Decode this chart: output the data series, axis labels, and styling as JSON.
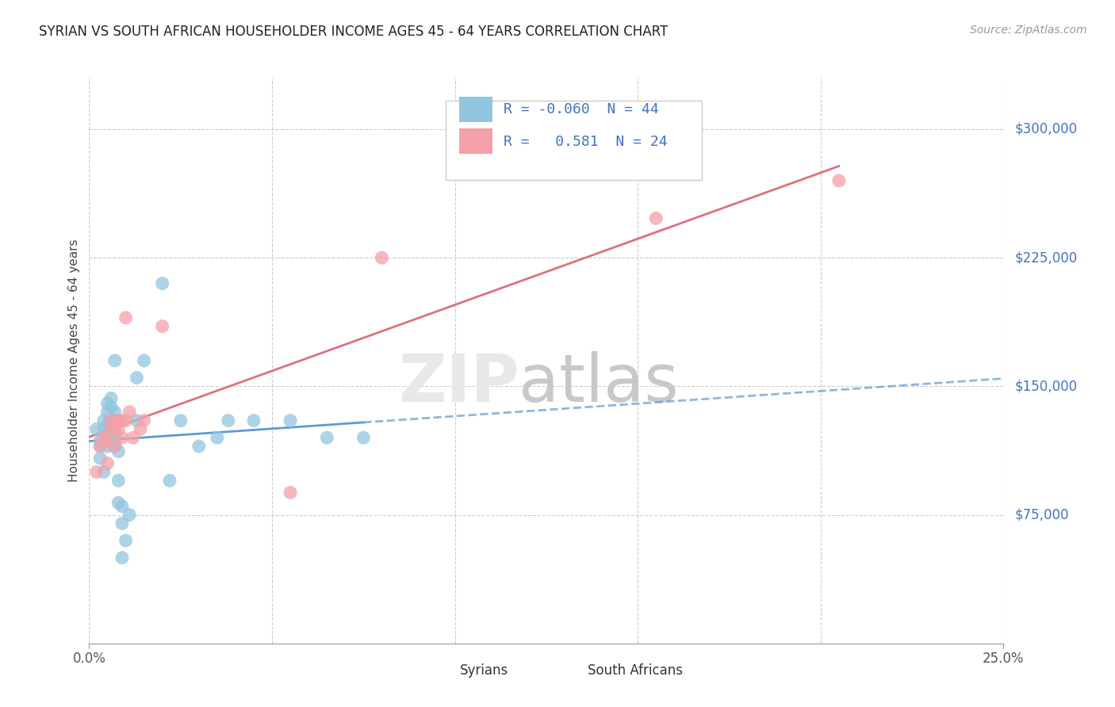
{
  "title": "SYRIAN VS SOUTH AFRICAN HOUSEHOLDER INCOME AGES 45 - 64 YEARS CORRELATION CHART",
  "source": "Source: ZipAtlas.com",
  "ylabel": "Householder Income Ages 45 - 64 years",
  "yticks": [
    75000,
    150000,
    225000,
    300000
  ],
  "ytick_labels": [
    "$75,000",
    "$150,000",
    "$225,000",
    "$300,000"
  ],
  "xmin": 0.0,
  "xmax": 0.25,
  "ymin": 0,
  "ymax": 330000,
  "legend_R_syrian": "-0.060",
  "legend_N_syrian": "44",
  "legend_R_sa": "0.581",
  "legend_N_sa": "24",
  "syrian_color": "#92C5DE",
  "sa_color": "#F4A0A8",
  "trendline_syrian_color": "#5B9BD5",
  "trendline_sa_color": "#E07080",
  "syrian_points_x": [
    0.002,
    0.003,
    0.003,
    0.003,
    0.004,
    0.004,
    0.004,
    0.005,
    0.005,
    0.005,
    0.005,
    0.005,
    0.006,
    0.006,
    0.006,
    0.006,
    0.007,
    0.007,
    0.007,
    0.007,
    0.007,
    0.007,
    0.008,
    0.008,
    0.008,
    0.008,
    0.009,
    0.009,
    0.009,
    0.01,
    0.011,
    0.013,
    0.013,
    0.015,
    0.02,
    0.022,
    0.025,
    0.03,
    0.035,
    0.038,
    0.045,
    0.055,
    0.065,
    0.075
  ],
  "syrian_points_y": [
    125000,
    115000,
    108000,
    118000,
    100000,
    125000,
    130000,
    115000,
    120000,
    128000,
    135000,
    140000,
    125000,
    130000,
    138000,
    143000,
    115000,
    118000,
    122000,
    130000,
    135000,
    165000,
    82000,
    95000,
    112000,
    130000,
    80000,
    70000,
    50000,
    60000,
    75000,
    130000,
    155000,
    165000,
    210000,
    95000,
    130000,
    115000,
    120000,
    130000,
    130000,
    130000,
    120000,
    120000
  ],
  "sa_points_x": [
    0.002,
    0.003,
    0.004,
    0.005,
    0.005,
    0.006,
    0.006,
    0.007,
    0.007,
    0.008,
    0.008,
    0.009,
    0.009,
    0.01,
    0.01,
    0.011,
    0.012,
    0.014,
    0.015,
    0.02,
    0.055,
    0.08,
    0.155,
    0.205
  ],
  "sa_points_y": [
    100000,
    115000,
    120000,
    105000,
    118000,
    125000,
    130000,
    115000,
    125000,
    125000,
    130000,
    120000,
    130000,
    130000,
    190000,
    135000,
    120000,
    125000,
    130000,
    185000,
    88000,
    225000,
    248000,
    270000
  ],
  "x_grid": [
    0.0,
    0.05,
    0.1,
    0.15,
    0.2,
    0.25
  ]
}
